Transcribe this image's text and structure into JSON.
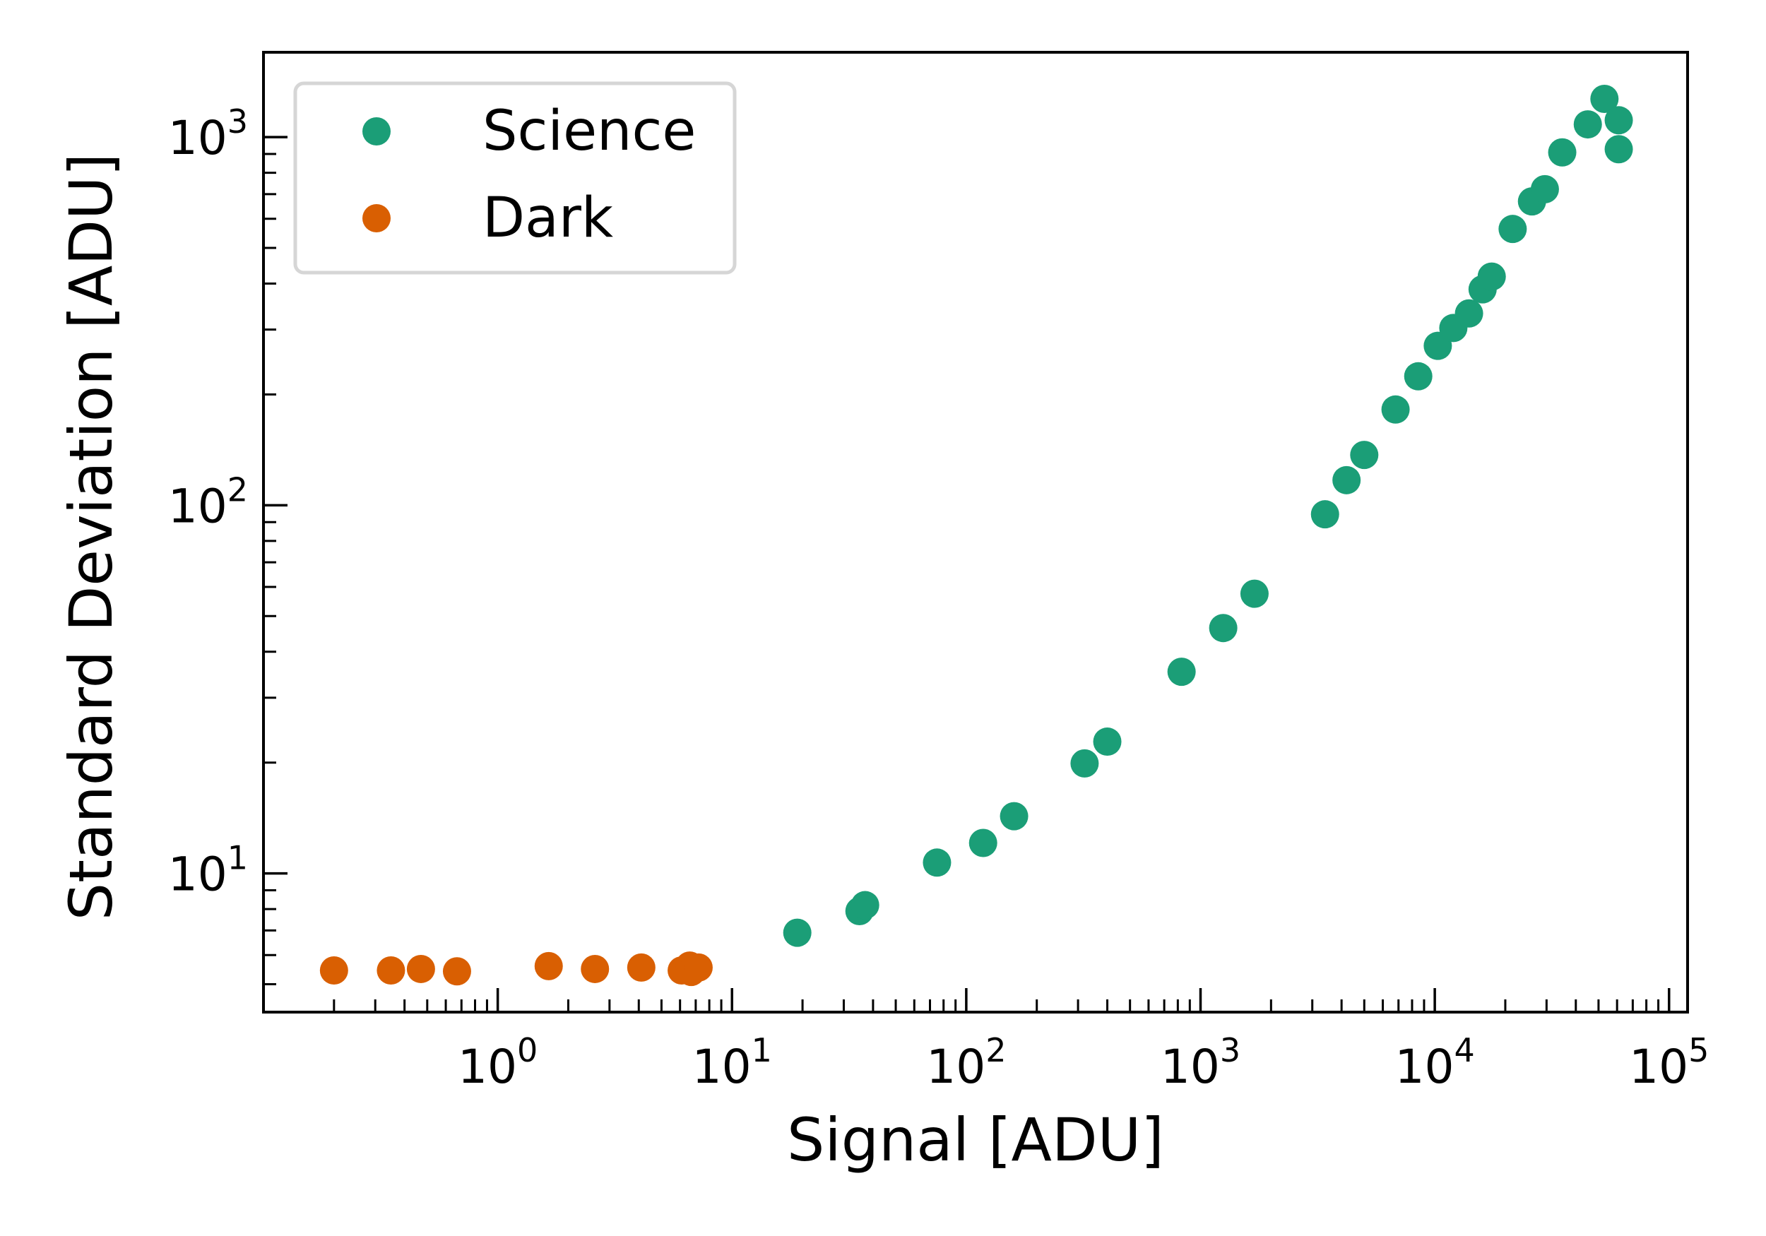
{
  "chart_data": {
    "type": "scatter",
    "xlabel": "Signal [ADU]",
    "ylabel": "Standard Deviation [ADU]",
    "xscale": "log",
    "yscale": "log",
    "xlim": [
      0.1,
      120000
    ],
    "ylim": [
      4.2,
      1700
    ],
    "x_ticks": [
      {
        "base": "10",
        "exp": "0",
        "value": 1
      },
      {
        "base": "10",
        "exp": "1",
        "value": 10
      },
      {
        "base": "10",
        "exp": "2",
        "value": 100
      },
      {
        "base": "10",
        "exp": "3",
        "value": 1000
      },
      {
        "base": "10",
        "exp": "4",
        "value": 10000
      },
      {
        "base": "10",
        "exp": "5",
        "value": 100000
      }
    ],
    "y_ticks": [
      {
        "base": "10",
        "exp": "1",
        "value": 10
      },
      {
        "base": "10",
        "exp": "2",
        "value": 100
      },
      {
        "base": "10",
        "exp": "3",
        "value": 1000
      }
    ],
    "legend_position": "top-left",
    "grid": false,
    "series": [
      {
        "name": "Science",
        "color": "#1b9e77",
        "points": [
          {
            "x": 19,
            "y": 6.9
          },
          {
            "x": 35,
            "y": 7.9
          },
          {
            "x": 37,
            "y": 8.2
          },
          {
            "x": 75,
            "y": 10.7
          },
          {
            "x": 118,
            "y": 12.1
          },
          {
            "x": 160,
            "y": 14.3
          },
          {
            "x": 320,
            "y": 19.9
          },
          {
            "x": 400,
            "y": 22.8
          },
          {
            "x": 830,
            "y": 35.3
          },
          {
            "x": 1250,
            "y": 46.4
          },
          {
            "x": 1700,
            "y": 57.5
          },
          {
            "x": 3400,
            "y": 94.5
          },
          {
            "x": 4200,
            "y": 117
          },
          {
            "x": 5000,
            "y": 137
          },
          {
            "x": 6800,
            "y": 182
          },
          {
            "x": 8500,
            "y": 224
          },
          {
            "x": 10300,
            "y": 271
          },
          {
            "x": 12000,
            "y": 303
          },
          {
            "x": 14000,
            "y": 332
          },
          {
            "x": 16000,
            "y": 386
          },
          {
            "x": 17500,
            "y": 418
          },
          {
            "x": 21500,
            "y": 563
          },
          {
            "x": 26000,
            "y": 669
          },
          {
            "x": 29500,
            "y": 722
          },
          {
            "x": 35000,
            "y": 909
          },
          {
            "x": 45000,
            "y": 1083
          },
          {
            "x": 53000,
            "y": 1270
          },
          {
            "x": 61000,
            "y": 1111
          },
          {
            "x": 61000,
            "y": 927
          }
        ]
      },
      {
        "name": "Dark",
        "color": "#d95f02",
        "points": [
          {
            "x": 0.2,
            "y": 5.45
          },
          {
            "x": 0.35,
            "y": 5.45
          },
          {
            "x": 0.47,
            "y": 5.5
          },
          {
            "x": 0.67,
            "y": 5.42
          },
          {
            "x": 1.65,
            "y": 5.6
          },
          {
            "x": 2.6,
            "y": 5.5
          },
          {
            "x": 4.1,
            "y": 5.55
          },
          {
            "x": 6.1,
            "y": 5.45
          },
          {
            "x": 6.6,
            "y": 5.62
          },
          {
            "x": 6.7,
            "y": 5.4
          },
          {
            "x": 7.2,
            "y": 5.55
          }
        ]
      }
    ]
  }
}
